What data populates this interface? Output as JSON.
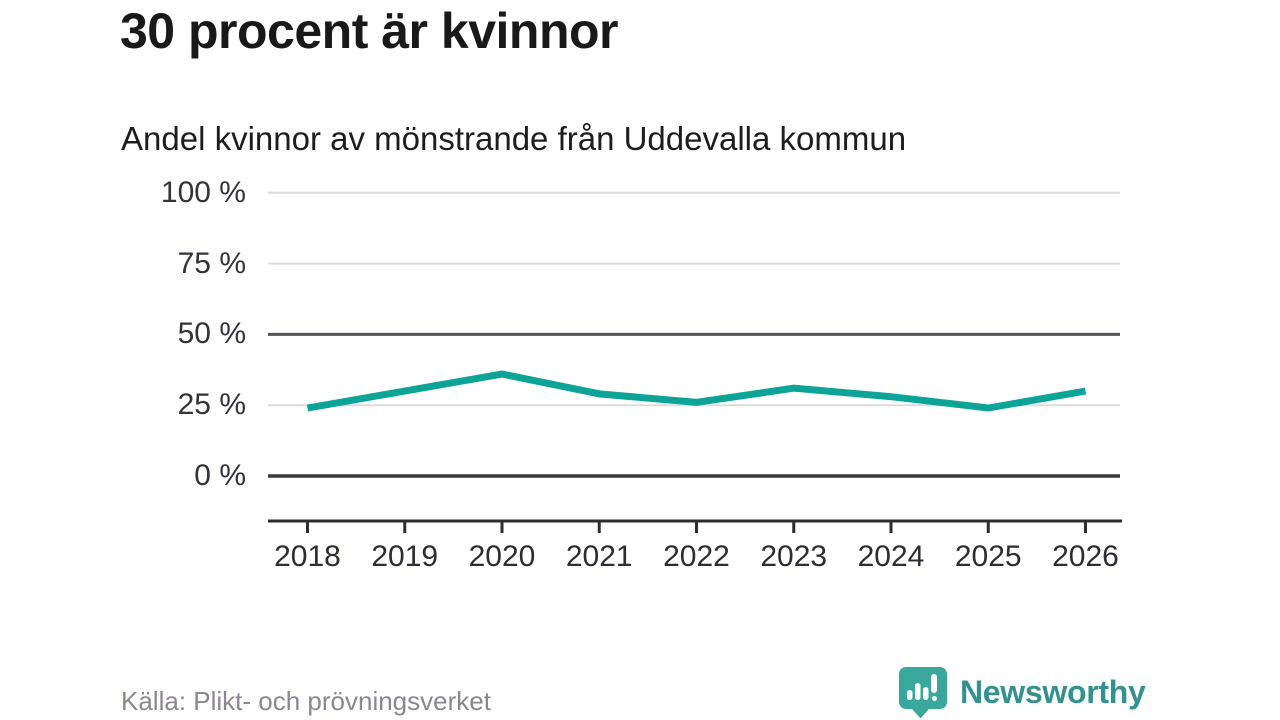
{
  "header": {
    "title": "30 procent är kvinnor",
    "subtitle": "Andel kvinnor av mönstrande från Uddevalla kommun"
  },
  "footer": {
    "source": "Källa: Plikt- och prövningsverket",
    "brand": "Newsworthy",
    "brand_icon": "speech-bubble-bar-chart-icon"
  },
  "colors": {
    "line": "#0da498",
    "grid_light": "#dcdcdc",
    "grid_mid": "#56535b",
    "grid_zero": "#3a373e",
    "axis": "#2e2b32",
    "icon_teal": "#3aa79d",
    "brand_teal": "#35918f"
  },
  "chart_data": {
    "type": "line",
    "title": "30 procent är kvinnor",
    "subtitle": "Andel kvinnor av mönstrande från Uddevalla kommun",
    "x": [
      "2018",
      "2019",
      "2020",
      "2021",
      "2022",
      "2023",
      "2024",
      "2025",
      "2026"
    ],
    "series": [
      {
        "name": "Andel kvinnor av mönstrande",
        "values": [
          24,
          30,
          36,
          29,
          26,
          31,
          28,
          24,
          30
        ]
      }
    ],
    "unit": "%",
    "ylim": [
      0,
      100
    ],
    "yticks": {
      "values": [
        100,
        75,
        50,
        25,
        0
      ],
      "labels": [
        "100 %",
        "75 %",
        "50 %",
        "25 %",
        "0 %"
      ]
    },
    "grid": "horizontal-only",
    "legend": "none",
    "emphasized_gridlines": [
      50,
      0
    ]
  }
}
